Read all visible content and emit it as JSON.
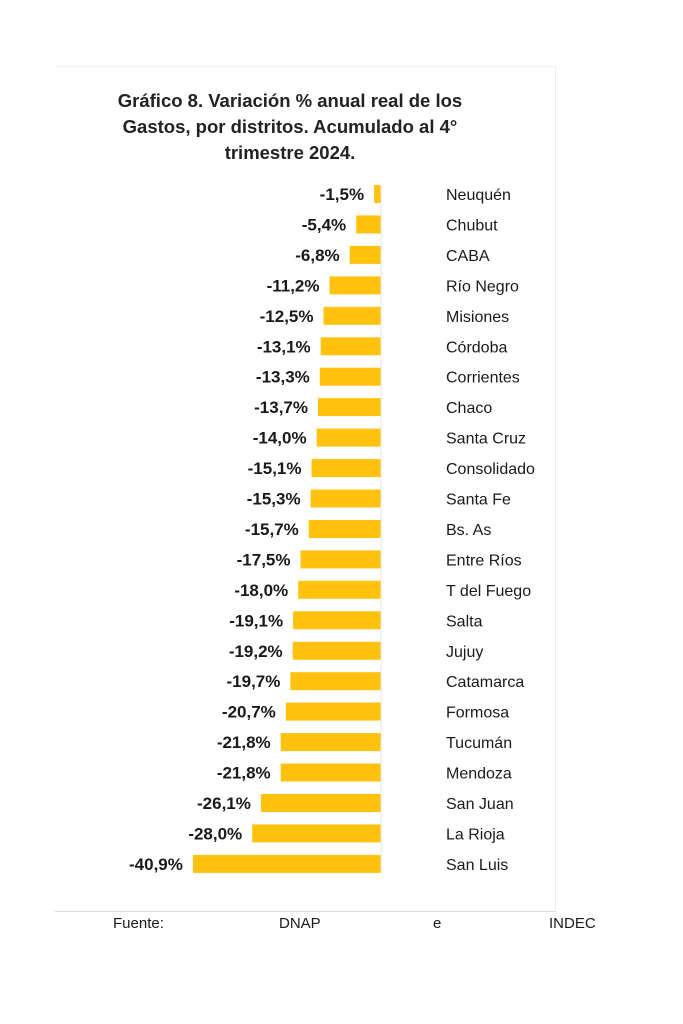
{
  "title_lines": [
    "Gráfico 8. Variación % anual real de los",
    "Gastos, por distritos. Acumulado al 4°",
    "trimestre 2024."
  ],
  "source": {
    "label": "Fuente:",
    "part1": "DNAP",
    "part2": "e",
    "part3": "INDEC"
  },
  "colors": {
    "bar": "#FFC20E"
  },
  "chart_data": {
    "type": "bar",
    "orientation": "horizontal",
    "title": "Gráfico 8. Variación % anual real de los Gastos, por distritos. Acumulado al 4° trimestre 2024.",
    "unit": "%",
    "categories": [
      "Neuquén",
      "Chubut",
      "CABA",
      "Río Negro",
      "Misiones",
      "Córdoba",
      "Corrientes",
      "Chaco",
      "Santa Cruz",
      "Consolidado",
      "Santa Fe",
      "Bs. As",
      "Entre Ríos",
      "T del Fuego",
      "Salta",
      "Jujuy",
      "Catamarca",
      "Formosa",
      "Tucumán",
      "Mendoza",
      "San Juan",
      "La Rioja",
      "San Luis"
    ],
    "values": [
      -1.5,
      -5.4,
      -6.8,
      -11.2,
      -12.5,
      -13.1,
      -13.3,
      -13.7,
      -14.0,
      -15.1,
      -15.3,
      -15.7,
      -17.5,
      -18.0,
      -19.1,
      -19.2,
      -19.7,
      -20.7,
      -21.8,
      -21.8,
      -26.1,
      -28.0,
      -40.9
    ],
    "labels": [
      "-1,5%",
      "-5,4%",
      "-6,8%",
      "-11,2%",
      "-12,5%",
      "-13,1%",
      "-13,3%",
      "-13,7%",
      "-14,0%",
      "-15,1%",
      "-15,3%",
      "-15,7%",
      "-17,5%",
      "-18,0%",
      "-19,1%",
      "-19,2%",
      "-19,7%",
      "-20,7%",
      "-21,8%",
      "-21,8%",
      "-26,1%",
      "-28,0%",
      "-40,9%"
    ],
    "xlabel": "",
    "ylabel": "",
    "grid": false,
    "legend": false
  }
}
